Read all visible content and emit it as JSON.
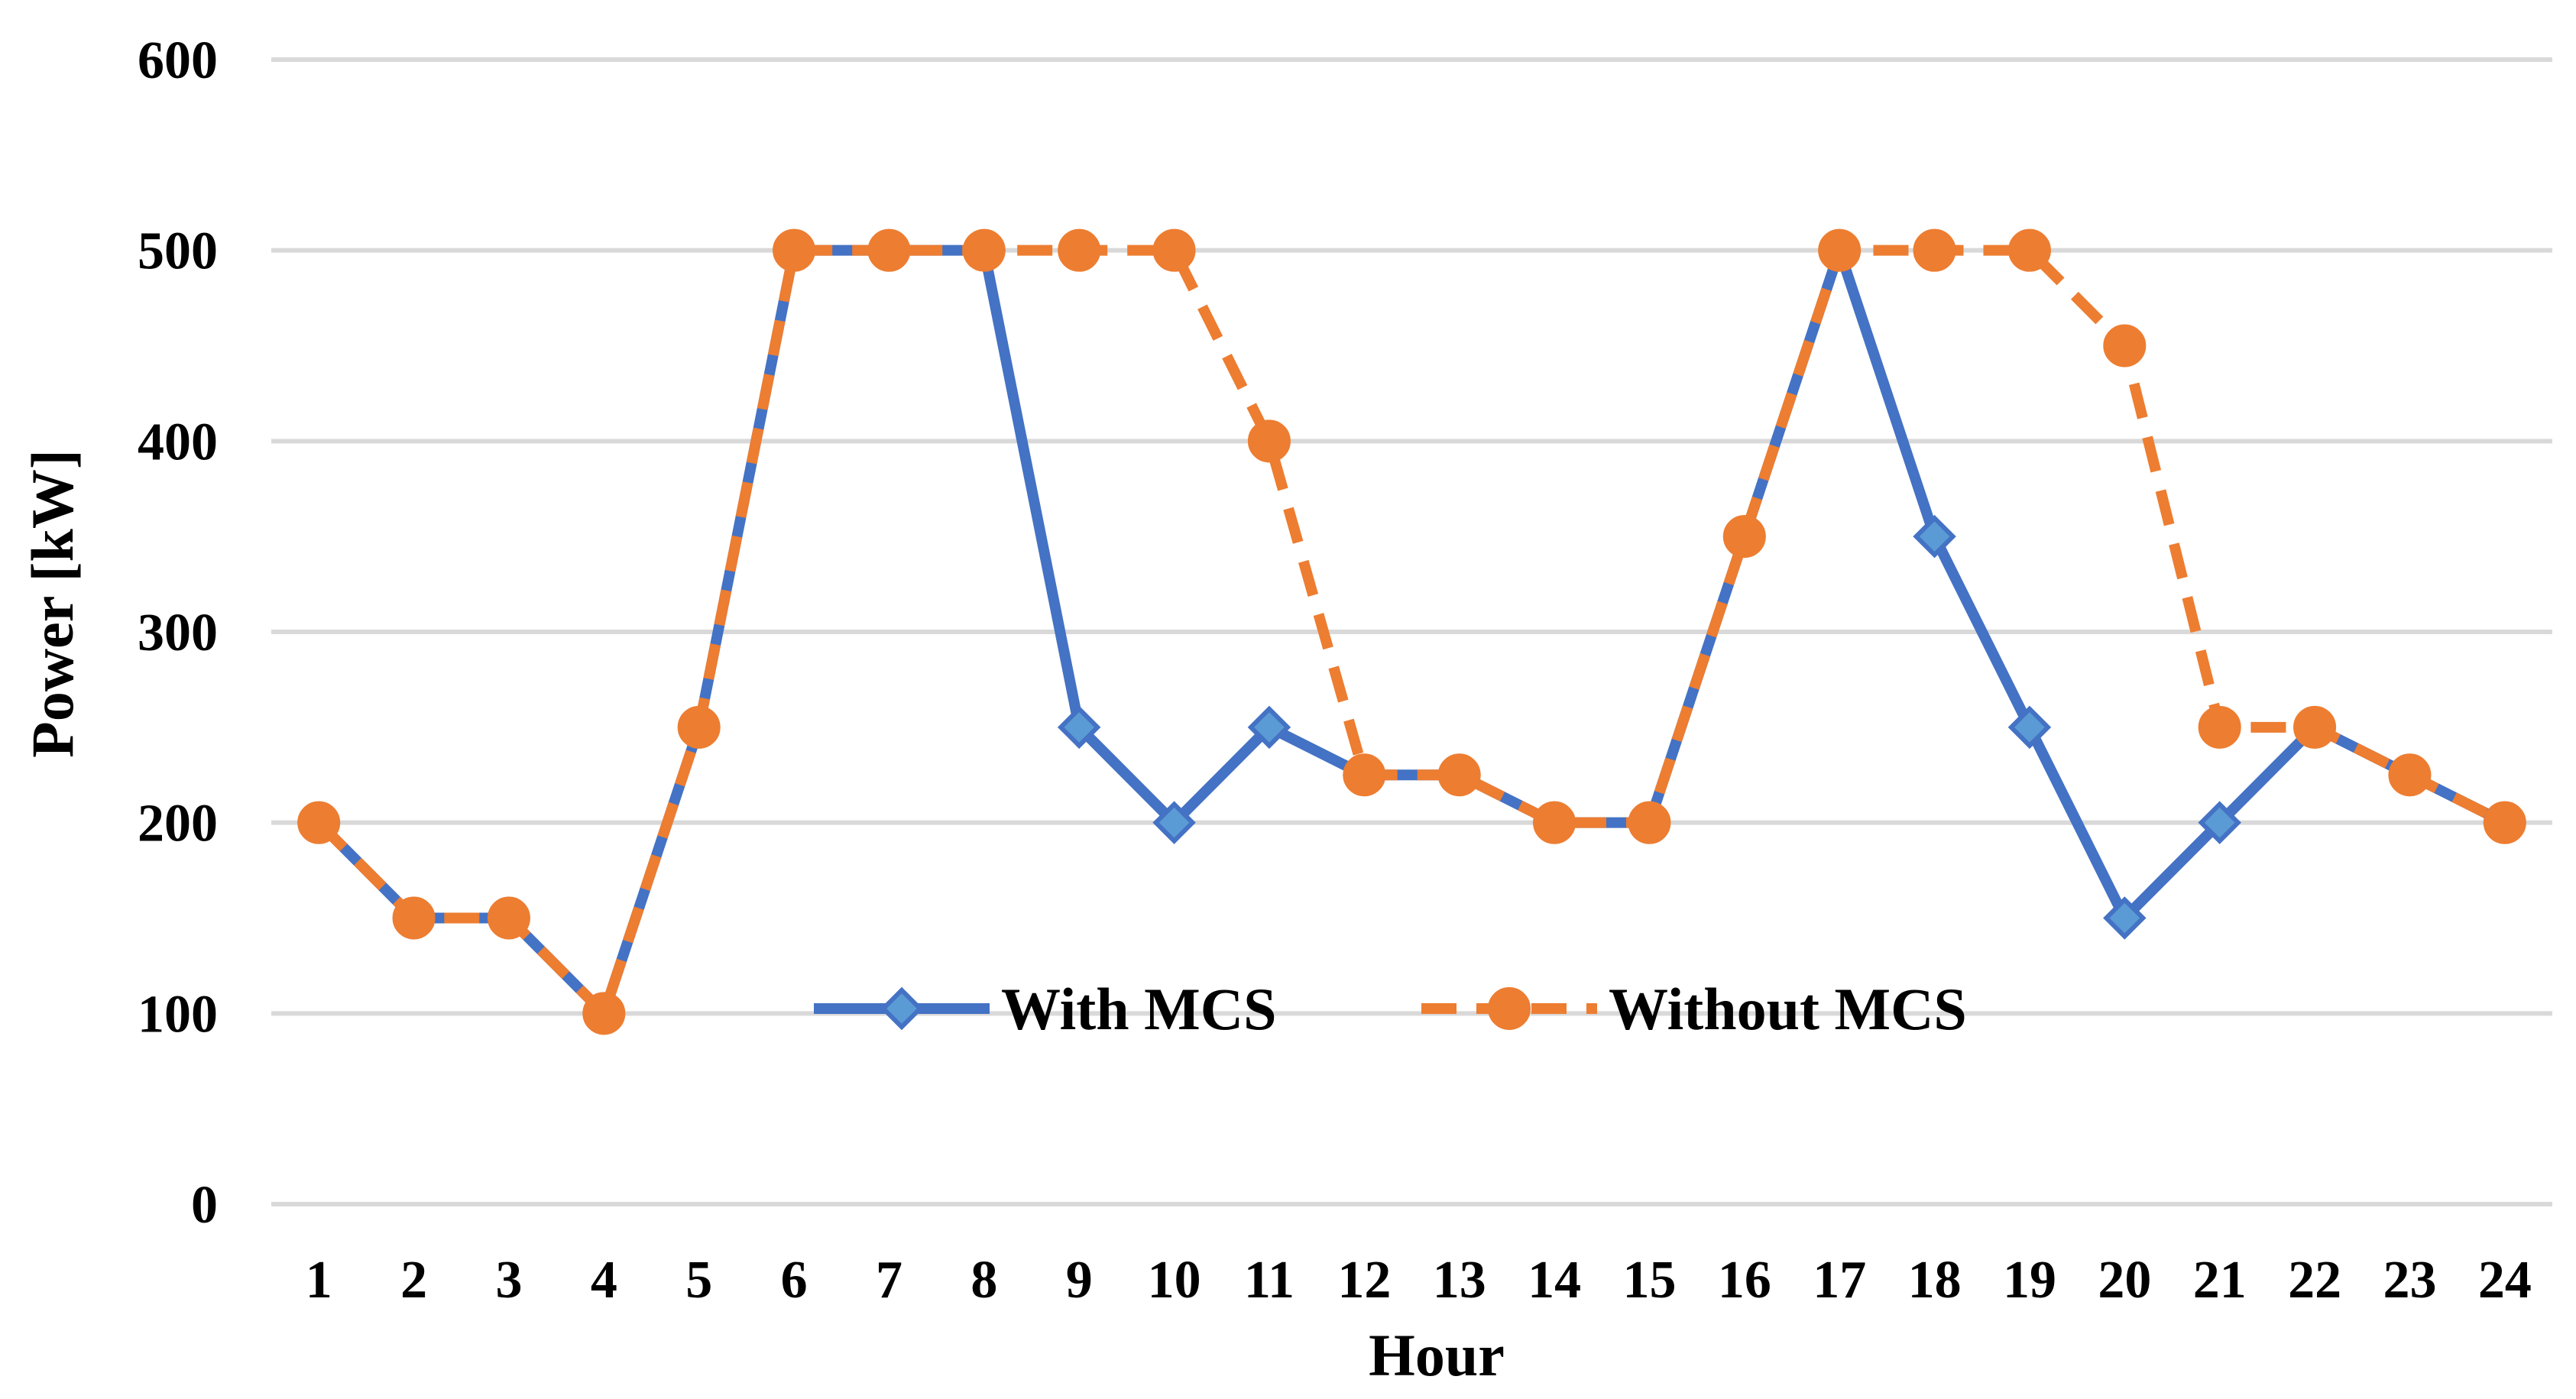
{
  "chart_data": {
    "type": "line",
    "title": "",
    "xlabel": "Hour",
    "ylabel": "Power [kW]",
    "categories": [
      "1",
      "2",
      "3",
      "4",
      "5",
      "6",
      "7",
      "8",
      "9",
      "10",
      "11",
      "12",
      "13",
      "14",
      "15",
      "16",
      "17",
      "18",
      "19",
      "20",
      "21",
      "22",
      "23",
      "24"
    ],
    "ylim": [
      0,
      600
    ],
    "yticks": [
      "0",
      "100",
      "200",
      "300",
      "400",
      "500",
      "600"
    ],
    "grid": true,
    "legend_position": "inside-bottom-center",
    "series": [
      {
        "name": "With MCS",
        "color": "#4472C4",
        "marker_color": "#5B9BD5",
        "line_style": "solid",
        "marker": "diamond",
        "values": [
          200,
          150,
          150,
          100,
          250,
          500,
          500,
          500,
          250,
          200,
          250,
          225,
          225,
          200,
          200,
          350,
          500,
          350,
          250,
          150,
          200,
          250,
          225,
          200
        ]
      },
      {
        "name": "Without MCS",
        "color": "#ED7D31",
        "marker_color": "#ED7D31",
        "line_style": "dashed",
        "marker": "circle",
        "values": [
          200,
          150,
          150,
          100,
          250,
          500,
          500,
          500,
          500,
          500,
          400,
          225,
          225,
          200,
          200,
          350,
          500,
          500,
          500,
          450,
          250,
          250,
          225,
          200
        ]
      }
    ]
  }
}
